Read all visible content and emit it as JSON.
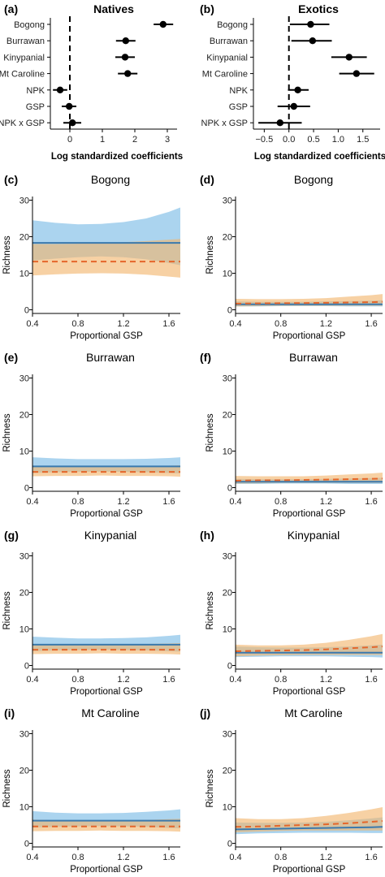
{
  "colors": {
    "band_blue": "#8fc5ea",
    "band_orange": "#f2b56c",
    "line_blue": "#3a79ad",
    "line_orange": "#e5662a",
    "point": "#000000"
  },
  "chart_data": [
    {
      "type": "scatter",
      "panel": "(a)",
      "title": "Natives",
      "xlabel": "Log standardized coefficients",
      "ylabel": "",
      "xlim": [
        -0.6,
        3.3
      ],
      "xticks": [
        "0",
        "1",
        "2",
        "3"
      ],
      "categories": [
        "Bogong",
        "Burrawan",
        "Kinypanial",
        "Mt Caroline",
        "NPK",
        "GSP",
        "NPK x GSP"
      ],
      "estimates": [
        2.87,
        1.72,
        1.7,
        1.78,
        -0.3,
        -0.02,
        0.08
      ],
      "lower": [
        2.58,
        1.42,
        1.4,
        1.48,
        -0.52,
        -0.25,
        -0.2
      ],
      "upper": [
        3.18,
        2.02,
        2.0,
        2.08,
        -0.08,
        0.2,
        0.35
      ],
      "reference_line": 0
    },
    {
      "type": "scatter",
      "panel": "(b)",
      "title": "Exotics",
      "xlabel": "Log standardized coefficients",
      "ylabel": "",
      "xlim": [
        -0.72,
        1.85
      ],
      "xticks": [
        "−0.5",
        "0.0",
        "0.5",
        "1.0",
        "1.5"
      ],
      "categories": [
        "Bogong",
        "Burrawan",
        "Kinypanial",
        "Mt Caroline",
        "NPK",
        "GSP",
        "NPK x GSP"
      ],
      "estimates": [
        0.44,
        0.48,
        1.22,
        1.37,
        0.18,
        0.1,
        -0.18
      ],
      "lower": [
        0.02,
        0.05,
        0.86,
        1.02,
        -0.02,
        -0.23,
        -0.62
      ],
      "upper": [
        0.82,
        0.87,
        1.58,
        1.73,
        0.4,
        0.43,
        0.26
      ],
      "reference_line": 0
    },
    {
      "type": "line",
      "panel": "(c)",
      "title": "Bogong",
      "xlabel": "Proportional GSP",
      "ylabel": "Richness",
      "xlim": [
        0.4,
        1.7
      ],
      "ylim": [
        -1,
        31
      ],
      "xticks": [
        "0.4",
        "0.8",
        "1.2",
        "1.6"
      ],
      "yticks": [
        "0",
        "10",
        "20",
        "30"
      ],
      "x": [
        0.4,
        0.6,
        0.8,
        1.0,
        1.2,
        1.4,
        1.6,
        1.7
      ],
      "series": [
        {
          "color": "blue",
          "values": [
            18.3,
            18.3,
            18.3,
            18.3,
            18.3,
            18.3,
            18.3,
            18.3
          ],
          "lower": [
            13.5,
            14.0,
            14.4,
            14.6,
            14.4,
            13.8,
            12.8,
            12.2
          ],
          "upper": [
            24.5,
            23.8,
            23.4,
            23.5,
            24.0,
            25.0,
            26.8,
            28.0
          ]
        },
        {
          "color": "orange",
          "values": [
            13.2,
            13.2,
            13.2,
            13.2,
            13.2,
            13.2,
            13.2,
            13.2
          ],
          "lower": [
            9.4,
            9.7,
            9.9,
            10.0,
            9.9,
            9.6,
            9.1,
            8.8
          ],
          "upper": [
            18.0,
            18.0,
            18.1,
            18.3,
            18.5,
            18.8,
            19.2,
            19.4
          ]
        }
      ]
    },
    {
      "type": "line",
      "panel": "(d)",
      "title": "Bogong",
      "xlabel": "Proportional GSP",
      "ylabel": "Richness",
      "xlim": [
        0.4,
        1.7
      ],
      "ylim": [
        -1,
        31
      ],
      "xticks": [
        "0.4",
        "0.8",
        "1.2",
        "1.6"
      ],
      "yticks": [
        "0",
        "10",
        "20",
        "30"
      ],
      "x": [
        0.4,
        0.6,
        0.8,
        1.0,
        1.2,
        1.4,
        1.6,
        1.7
      ],
      "series": [
        {
          "color": "blue",
          "values": [
            1.5,
            1.5,
            1.5,
            1.5,
            1.5,
            1.5,
            1.5,
            1.5
          ],
          "lower": [
            0.9,
            0.9,
            1.0,
            1.0,
            1.0,
            0.9,
            0.9,
            0.9
          ],
          "upper": [
            2.3,
            2.2,
            2.2,
            2.2,
            2.3,
            2.4,
            2.5,
            2.6
          ]
        },
        {
          "color": "orange",
          "values": [
            1.7,
            1.75,
            1.8,
            1.85,
            1.9,
            2.0,
            2.1,
            2.2
          ],
          "lower": [
            0.9,
            1.0,
            1.1,
            1.1,
            1.1,
            1.1,
            1.1,
            1.1
          ],
          "upper": [
            3.0,
            2.9,
            2.9,
            3.0,
            3.2,
            3.6,
            4.0,
            4.3
          ]
        }
      ]
    },
    {
      "type": "line",
      "panel": "(e)",
      "title": "Burrawan",
      "xlabel": "Proportional GSP",
      "ylabel": "Richness",
      "xlim": [
        0.4,
        1.7
      ],
      "ylim": [
        -1,
        31
      ],
      "xticks": [
        "0.4",
        "0.8",
        "1.2",
        "1.6"
      ],
      "yticks": [
        "0",
        "10",
        "20",
        "30"
      ],
      "x": [
        0.4,
        0.6,
        0.8,
        1.0,
        1.2,
        1.4,
        1.6,
        1.7
      ],
      "series": [
        {
          "color": "blue",
          "values": [
            5.8,
            5.8,
            5.8,
            5.8,
            5.8,
            5.8,
            5.8,
            5.8
          ],
          "lower": [
            4.0,
            4.2,
            4.3,
            4.4,
            4.3,
            4.2,
            4.0,
            3.9
          ],
          "upper": [
            8.3,
            8.0,
            7.8,
            7.8,
            7.8,
            7.9,
            8.1,
            8.3
          ]
        },
        {
          "color": "orange",
          "values": [
            4.3,
            4.3,
            4.3,
            4.3,
            4.3,
            4.3,
            4.3,
            4.3
          ],
          "lower": [
            3.1,
            3.2,
            3.2,
            3.3,
            3.2,
            3.2,
            3.1,
            3.0
          ],
          "upper": [
            5.9,
            5.8,
            5.7,
            5.7,
            5.8,
            5.9,
            6.0,
            6.1
          ]
        }
      ]
    },
    {
      "type": "line",
      "panel": "(f)",
      "title": "Burrawan",
      "xlabel": "Proportional GSP",
      "ylabel": "Richness",
      "xlim": [
        0.4,
        1.7
      ],
      "ylim": [
        -1,
        31
      ],
      "xticks": [
        "0.4",
        "0.8",
        "1.2",
        "1.6"
      ],
      "yticks": [
        "0",
        "10",
        "20",
        "30"
      ],
      "x": [
        0.4,
        0.6,
        0.8,
        1.0,
        1.2,
        1.4,
        1.6,
        1.7
      ],
      "series": [
        {
          "color": "blue",
          "values": [
            1.6,
            1.6,
            1.6,
            1.6,
            1.6,
            1.6,
            1.6,
            1.6
          ],
          "lower": [
            1.0,
            1.0,
            1.1,
            1.1,
            1.1,
            1.0,
            1.0,
            1.0
          ],
          "upper": [
            2.4,
            2.3,
            2.3,
            2.3,
            2.4,
            2.5,
            2.6,
            2.7
          ]
        },
        {
          "color": "orange",
          "values": [
            1.9,
            2.0,
            2.0,
            2.1,
            2.2,
            2.3,
            2.4,
            2.5
          ],
          "lower": [
            1.1,
            1.2,
            1.3,
            1.3,
            1.3,
            1.3,
            1.3,
            1.3
          ],
          "upper": [
            3.2,
            3.1,
            3.1,
            3.1,
            3.3,
            3.6,
            3.9,
            4.1
          ]
        }
      ]
    },
    {
      "type": "line",
      "panel": "(g)",
      "title": "Kinypanial",
      "xlabel": "Proportional GSP",
      "ylabel": "Richness",
      "xlim": [
        0.4,
        1.7
      ],
      "ylim": [
        -1,
        31
      ],
      "xticks": [
        "0.4",
        "0.8",
        "1.2",
        "1.6"
      ],
      "yticks": [
        "0",
        "10",
        "20",
        "30"
      ],
      "x": [
        0.4,
        0.6,
        0.8,
        1.0,
        1.2,
        1.4,
        1.6,
        1.7
      ],
      "series": [
        {
          "color": "blue",
          "values": [
            5.7,
            5.7,
            5.7,
            5.7,
            5.7,
            5.7,
            5.7,
            5.7
          ],
          "lower": [
            3.9,
            4.1,
            4.2,
            4.3,
            4.2,
            4.1,
            3.9,
            3.8
          ],
          "upper": [
            7.9,
            7.6,
            7.4,
            7.4,
            7.5,
            7.7,
            8.1,
            8.4
          ]
        },
        {
          "color": "orange",
          "values": [
            4.3,
            4.3,
            4.3,
            4.3,
            4.3,
            4.3,
            4.3,
            4.3
          ],
          "lower": [
            3.1,
            3.2,
            3.2,
            3.3,
            3.2,
            3.2,
            3.1,
            3.0
          ],
          "upper": [
            5.9,
            5.8,
            5.7,
            5.7,
            5.8,
            5.9,
            6.0,
            6.1
          ]
        }
      ]
    },
    {
      "type": "line",
      "panel": "(h)",
      "title": "Kinypanial",
      "xlabel": "Proportional GSP",
      "ylabel": "Richness",
      "xlim": [
        0.4,
        1.7
      ],
      "ylim": [
        -1,
        31
      ],
      "xticks": [
        "0.4",
        "0.8",
        "1.2",
        "1.6"
      ],
      "yticks": [
        "0",
        "10",
        "20",
        "30"
      ],
      "x": [
        0.4,
        0.6,
        0.8,
        1.0,
        1.2,
        1.4,
        1.6,
        1.7
      ],
      "series": [
        {
          "color": "blue",
          "values": [
            3.5,
            3.5,
            3.5,
            3.5,
            3.5,
            3.5,
            3.5,
            3.5
          ],
          "lower": [
            2.3,
            2.4,
            2.5,
            2.5,
            2.5,
            2.4,
            2.3,
            2.2
          ],
          "upper": [
            5.2,
            5.0,
            4.9,
            4.9,
            5.0,
            5.2,
            5.5,
            5.7
          ]
        },
        {
          "color": "orange",
          "values": [
            3.9,
            4.0,
            4.1,
            4.2,
            4.4,
            4.7,
            5.0,
            5.2
          ],
          "lower": [
            2.5,
            2.7,
            2.8,
            2.9,
            2.9,
            2.9,
            2.9,
            2.9
          ],
          "upper": [
            5.7,
            5.5,
            5.5,
            5.7,
            6.2,
            7.0,
            8.0,
            8.6
          ]
        }
      ]
    },
    {
      "type": "line",
      "panel": "(i)",
      "title": "Mt Caroline",
      "xlabel": "Proportional GSP",
      "ylabel": "Richness",
      "xlim": [
        0.4,
        1.7
      ],
      "ylim": [
        -1,
        31
      ],
      "xticks": [
        "0.4",
        "0.8",
        "1.2",
        "1.6"
      ],
      "yticks": [
        "0",
        "10",
        "20",
        "30"
      ],
      "x": [
        0.4,
        0.6,
        0.8,
        1.0,
        1.2,
        1.4,
        1.6,
        1.7
      ],
      "series": [
        {
          "color": "blue",
          "values": [
            6.2,
            6.2,
            6.2,
            6.2,
            6.2,
            6.2,
            6.2,
            6.2
          ],
          "lower": [
            4.3,
            4.5,
            4.6,
            4.7,
            4.6,
            4.5,
            4.2,
            4.1
          ],
          "upper": [
            8.8,
            8.4,
            8.2,
            8.2,
            8.3,
            8.6,
            9.0,
            9.3
          ]
        },
        {
          "color": "orange",
          "values": [
            4.6,
            4.6,
            4.6,
            4.6,
            4.6,
            4.6,
            4.6,
            4.6
          ],
          "lower": [
            3.3,
            3.4,
            3.4,
            3.5,
            3.4,
            3.4,
            3.3,
            3.2
          ],
          "upper": [
            6.5,
            6.3,
            6.2,
            6.2,
            6.3,
            6.4,
            6.6,
            6.7
          ]
        }
      ]
    },
    {
      "type": "line",
      "panel": "(j)",
      "title": "Mt Caroline",
      "xlabel": "Proportional GSP",
      "ylabel": "Richness",
      "xlim": [
        0.4,
        1.7
      ],
      "ylim": [
        -1,
        31
      ],
      "xticks": [
        "0.4",
        "0.8",
        "1.2",
        "1.6"
      ],
      "yticks": [
        "0",
        "10",
        "20",
        "30"
      ],
      "x": [
        0.4,
        0.6,
        0.8,
        1.0,
        1.2,
        1.4,
        1.6,
        1.7
      ],
      "series": [
        {
          "color": "blue",
          "values": [
            3.8,
            3.9,
            4.0,
            4.1,
            4.2,
            4.3,
            4.4,
            4.5
          ],
          "lower": [
            2.5,
            2.7,
            2.8,
            2.9,
            2.9,
            2.9,
            2.8,
            2.8
          ],
          "upper": [
            5.7,
            5.6,
            5.6,
            5.7,
            5.9,
            6.3,
            6.8,
            7.1
          ]
        },
        {
          "color": "orange",
          "values": [
            4.5,
            4.6,
            4.8,
            5.0,
            5.2,
            5.5,
            5.9,
            6.1
          ],
          "lower": [
            3.0,
            3.2,
            3.4,
            3.5,
            3.5,
            3.5,
            3.5,
            3.5
          ],
          "upper": [
            6.9,
            6.6,
            6.6,
            6.9,
            7.5,
            8.3,
            9.3,
            9.9
          ]
        }
      ]
    }
  ]
}
